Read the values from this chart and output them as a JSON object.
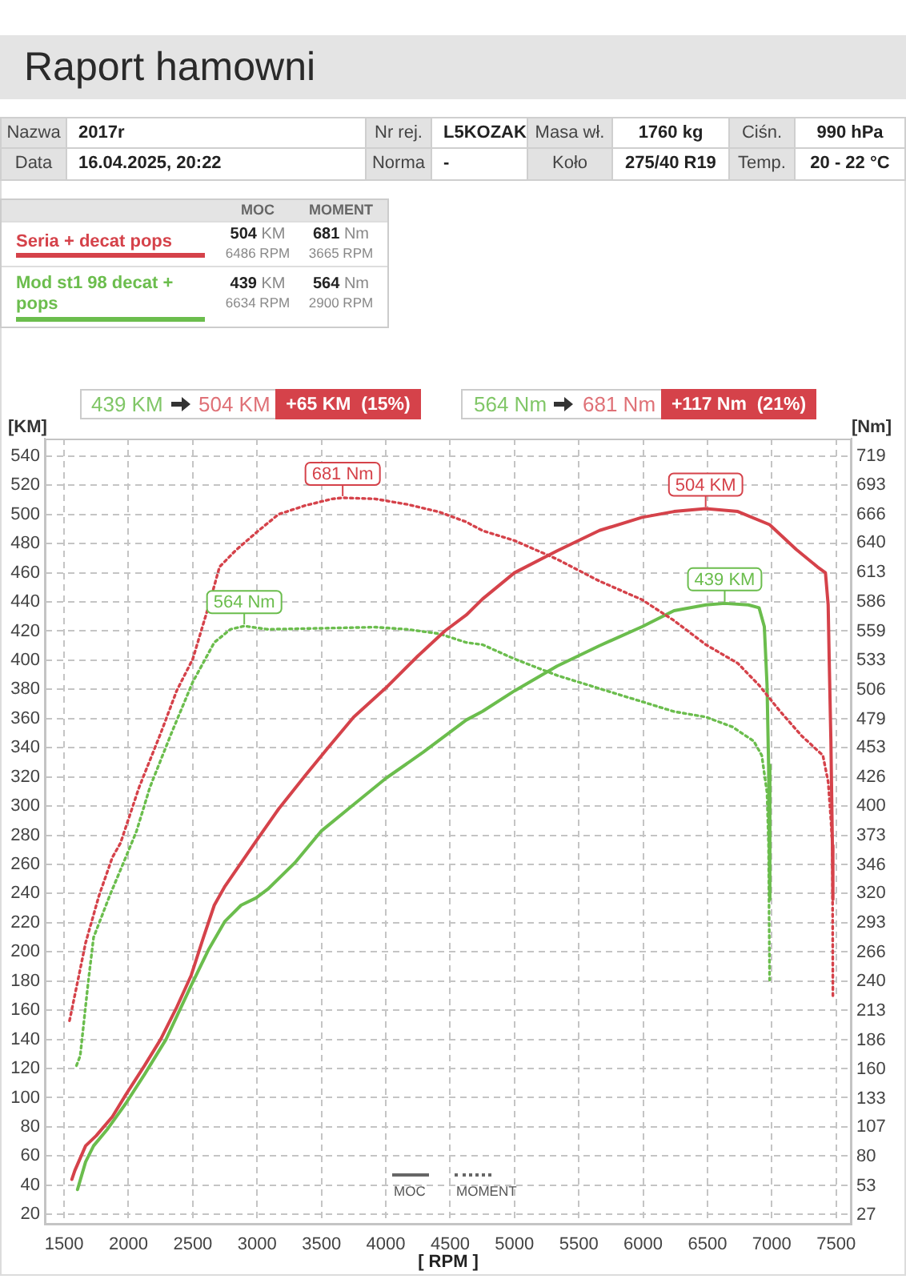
{
  "chart_data": {
    "type": "line",
    "title": "Raport hamowni",
    "xlabel": "[ RPM ]",
    "ylabel": "[KM]",
    "y2label": "[Nm]",
    "annotations": [
      "Nazwa",
      "2017r",
      "Nr rej.",
      "L5KOZAK",
      "Masa wł.",
      "1760 kg",
      "Ciśn.",
      "990 hPa",
      "Data",
      "16.04.2025, 20:22",
      "Norma",
      "-",
      "Koło",
      "275/40 R19",
      "Temp.",
      "20 - 22 °C",
      "MOC",
      "MOMENT",
      "504 KM",
      "6486 RPM",
      "681 Nm",
      "3665 RPM",
      "439 KM",
      "6634 RPM",
      "564 Nm",
      "2900 RPM",
      "439 KM",
      "504 KM",
      "+65 KM  (15%)",
      "564 Nm",
      "681 Nm",
      "+117 Nm  (21%)",
      "MOC",
      "MOMENT"
    ],
    "xlim": [
      1350,
      7620
    ],
    "xticks": [
      1500,
      2000,
      2500,
      3000,
      3500,
      4000,
      4500,
      5000,
      5500,
      6000,
      6500,
      7000,
      7500
    ],
    "ylim": [
      13,
      552
    ],
    "yticks": [
      20,
      40,
      60,
      80,
      100,
      120,
      140,
      160,
      180,
      200,
      220,
      240,
      260,
      280,
      300,
      320,
      340,
      360,
      380,
      400,
      420,
      440,
      460,
      480,
      500,
      520,
      540
    ],
    "y2lim": [
      18,
      735
    ],
    "y2ticks": [
      27,
      53,
      80,
      107,
      133,
      160,
      186,
      213,
      240,
      266,
      293,
      320,
      346,
      373,
      400,
      426,
      453,
      479,
      506,
      533,
      559,
      586,
      613,
      640,
      666,
      693,
      719
    ],
    "grid": true,
    "legend": "top left",
    "series": [
      {
        "name": "Seria + decat pops",
        "color": "#d5424a",
        "line_style": "solid",
        "x": [
          1560,
          1583,
          1667,
          1750,
          1875,
          1979,
          2125,
          2250,
          2375,
          2488,
          2583,
          2667,
          2750,
          2875,
          2992,
          3167,
          3375,
          3542,
          3750,
          4000,
          4250,
          4458,
          4625,
          4752,
          5000,
          5331,
          5661,
          5992,
          6240,
          6486,
          6736,
          6983,
          7190,
          7355,
          7417,
          7438,
          7446,
          7459,
          7471,
          7475
        ],
        "values": [
          44,
          50,
          67,
          74,
          87,
          102,
          122,
          140,
          162,
          184,
          210,
          232,
          245,
          261,
          276,
          298,
          321,
          339,
          361,
          381,
          403,
          420,
          431,
          442,
          460,
          475,
          489,
          498,
          502,
          504,
          502,
          493,
          476,
          464,
          460,
          438,
          401,
          346,
          273,
          236
        ],
        "value_labels": [
          null,
          null,
          null,
          null,
          null,
          null,
          null,
          null,
          null,
          null,
          null,
          null,
          null,
          null,
          null,
          null,
          null,
          null,
          null,
          null,
          null,
          null,
          null,
          null,
          null,
          null,
          null,
          null,
          null,
          "504 KM",
          null,
          null,
          null,
          null,
          null,
          null,
          null,
          null,
          null,
          null
        ]
      },
      {
        "color": "#d5424a",
        "line_style": "dotted",
        "axis": "y2",
        "x": [
          1542,
          1625,
          1667,
          1771,
          1875,
          1938,
          2083,
          2250,
          2375,
          2500,
          2625,
          2708,
          2833,
          3000,
          3167,
          3375,
          3583,
          3665,
          3917,
          4167,
          4417,
          4625,
          4752,
          5000,
          5331,
          5661,
          5992,
          6240,
          6488,
          6736,
          6901,
          7066,
          7231,
          7397,
          7438,
          7459,
          7471,
          7475
        ],
        "values": [
          204,
          251,
          275,
          318,
          353,
          366,
          417,
          466,
          505,
          534,
          583,
          618,
          633,
          650,
          666,
          674,
          680,
          681,
          680,
          675,
          668,
          659,
          651,
          642,
          625,
          605,
          588,
          569,
          547,
          530,
          510,
          486,
          464,
          446,
          422,
          388,
          364,
          224
        ],
        "value_labels": [
          null,
          null,
          null,
          null,
          null,
          null,
          null,
          null,
          null,
          null,
          null,
          null,
          null,
          null,
          null,
          null,
          null,
          "681 Nm",
          null,
          null,
          null,
          null,
          null,
          null,
          null,
          null,
          null,
          null,
          null,
          null,
          null,
          null,
          null,
          null,
          null,
          null,
          null,
          null
        ]
      },
      {
        "name": "Mod st1 98 decat + pops",
        "color": "#6bbd4d",
        "line_style": "solid",
        "x": [
          1604,
          1667,
          1729,
          1833,
          1979,
          2125,
          2292,
          2488,
          2625,
          2750,
          2875,
          2992,
          3083,
          3292,
          3500,
          3708,
          4000,
          4292,
          4625,
          4752,
          5000,
          5331,
          5661,
          5992,
          6240,
          6488,
          6634,
          6818,
          6901,
          6942,
          6963,
          6975,
          6985
        ],
        "values": [
          37,
          56,
          67,
          78,
          96,
          116,
          140,
          177,
          202,
          221,
          232,
          237,
          243,
          261,
          283,
          298,
          319,
          337,
          359,
          365,
          379,
          396,
          410,
          423,
          434,
          438,
          439,
          438,
          436,
          423,
          383,
          328,
          236
        ],
        "value_labels": [
          null,
          null,
          null,
          null,
          null,
          null,
          null,
          null,
          null,
          null,
          null,
          null,
          null,
          null,
          null,
          null,
          null,
          null,
          null,
          null,
          null,
          null,
          null,
          null,
          null,
          null,
          "439 KM",
          null,
          null,
          null,
          null,
          null,
          null
        ]
      },
      {
        "color": "#6bbd4d",
        "line_style": "dotted",
        "axis": "y2",
        "x": [
          1596,
          1625,
          1688,
          1729,
          1854,
          1979,
          2063,
          2167,
          2333,
          2500,
          2667,
          2792,
          2900,
          3083,
          3500,
          3917,
          4167,
          4417,
          4625,
          4752,
          5000,
          5331,
          5661,
          5992,
          6240,
          6488,
          6694,
          6860,
          6922,
          6963,
          6975,
          6983
        ],
        "values": [
          163,
          172,
          240,
          280,
          318,
          353,
          377,
          417,
          466,
          513,
          549,
          561,
          564,
          561,
          562,
          563,
          561,
          557,
          549,
          547,
          534,
          519,
          507,
          495,
          486,
          481,
          472,
          459,
          446,
          412,
          364,
          241
        ],
        "value_labels": [
          null,
          null,
          null,
          null,
          null,
          null,
          null,
          null,
          null,
          null,
          null,
          null,
          "564 Nm",
          null,
          null,
          null,
          null,
          null,
          null,
          null,
          null,
          null,
          null,
          null,
          null,
          null,
          null,
          null,
          null,
          null,
          null,
          null
        ]
      }
    ]
  }
}
